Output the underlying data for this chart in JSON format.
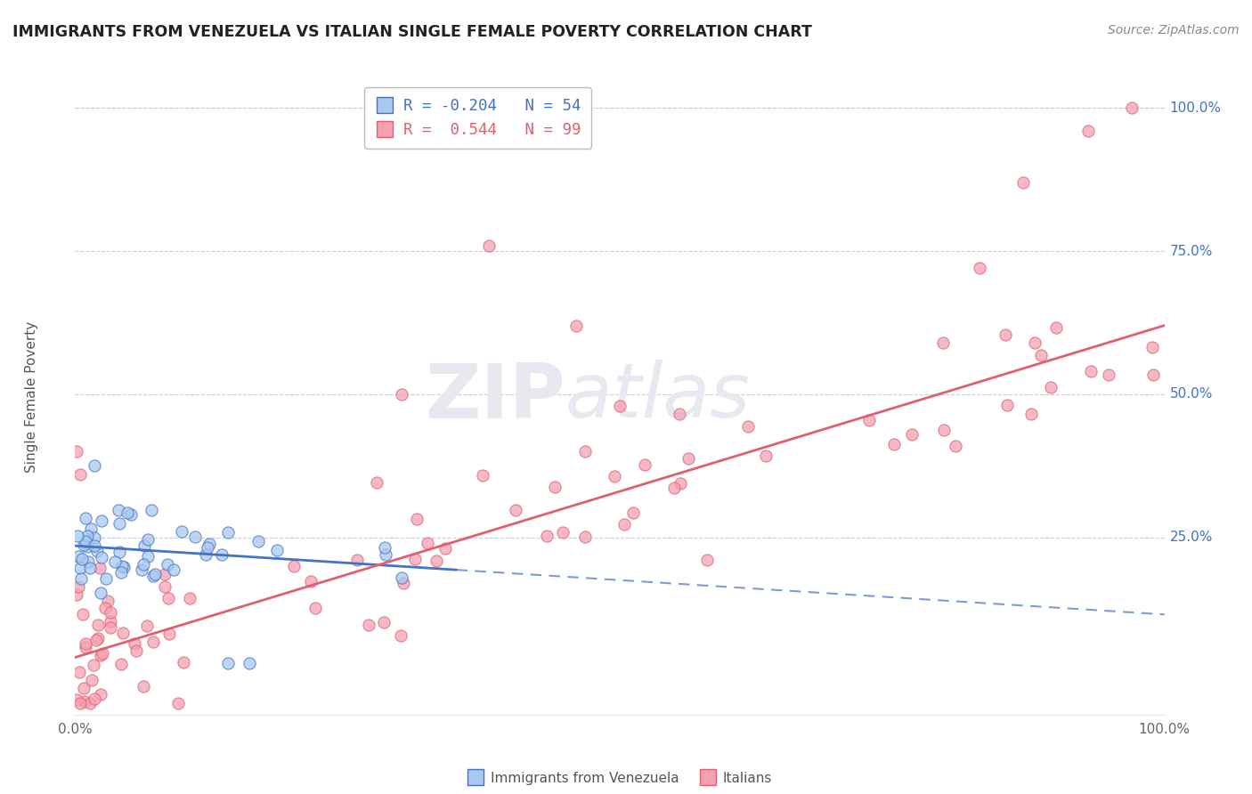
{
  "title": "IMMIGRANTS FROM VENEZUELA VS ITALIAN SINGLE FEMALE POVERTY CORRELATION CHART",
  "source": "Source: ZipAtlas.com",
  "ylabel": "Single Female Poverty",
  "legend_blue_r": "-0.204",
  "legend_blue_n": "54",
  "legend_pink_r": "0.544",
  "legend_pink_n": "99",
  "blue_color": "#A8C8F0",
  "pink_color": "#F4A0B0",
  "blue_line_color": "#4472C4",
  "pink_line_color": "#E06070",
  "watermark_color": "#E8E8F0",
  "grid_color": "#CCCCDD",
  "right_label_color": "#4472C4",
  "ytick_labels": [
    "100.0%",
    "75.0%",
    "50.0%",
    "25.0%"
  ],
  "ytick_vals": [
    1.0,
    0.75,
    0.5,
    0.25
  ],
  "xlim": [
    0.0,
    1.0
  ],
  "ylim": [
    -0.06,
    1.05
  ],
  "blue_line_solid_end": 0.35,
  "blue_line_m": -0.12,
  "blue_line_b": 0.235,
  "pink_line_m": 0.58,
  "pink_line_b": 0.04
}
